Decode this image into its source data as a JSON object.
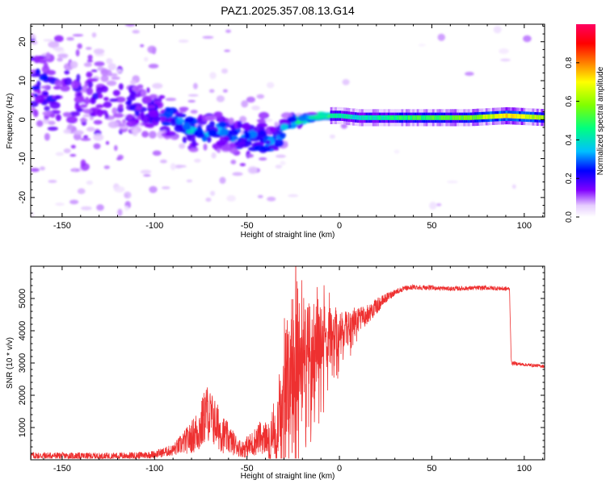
{
  "figure_title": "PAZ1.2025.357.08.13.G14",
  "chart_data": [
    {
      "type": "heatmap",
      "title": "PAZ1.2025.357.08.13.G14",
      "xlabel": "Height of straight line (km)",
      "ylabel": "Frequency (Hz)",
      "xlim": [
        -167,
        111
      ],
      "ylim": [
        -25,
        24.5
      ],
      "xticks": [
        -150,
        -100,
        -50,
        0,
        50,
        100
      ],
      "yticks": [
        -20,
        -10,
        0,
        10,
        20
      ],
      "colorbar": {
        "label": "Normalized spectral amplitude",
        "range": [
          0,
          1
        ],
        "ticks": [
          "0.0",
          "0.2",
          "0.4",
          "0.6",
          "0.8"
        ],
        "colormap": [
          "#ffffff",
          "#8000ff",
          "#0000ff",
          "#00ffff",
          "#00ff00",
          "#ffff00",
          "#ff0000",
          "#ff0060"
        ]
      },
      "ridge": {
        "x": [
          -167,
          -150,
          -130,
          -110,
          -95,
          -80,
          -65,
          -50,
          -42,
          -35,
          -28,
          -20,
          -10,
          0,
          10,
          30,
          50,
          70,
          90,
          111
        ],
        "frequency": [
          9,
          7,
          5,
          4,
          1,
          -3,
          -3,
          -5,
          -5,
          -6,
          -1,
          0,
          1,
          1,
          0.5,
          0.5,
          0.5,
          0.5,
          1,
          0.5
        ],
        "amplitude": [
          0.25,
          0.2,
          0.18,
          0.2,
          0.25,
          0.35,
          0.3,
          0.3,
          0.3,
          0.3,
          0.35,
          0.45,
          0.55,
          0.5,
          0.45,
          0.55,
          0.6,
          0.65,
          0.85,
          0.7
        ],
        "spread_hz": [
          12,
          11,
          10,
          8,
          6,
          5,
          5,
          5,
          5,
          4,
          2,
          1.5,
          1,
          0.8,
          0.7,
          0.7,
          0.7,
          0.7,
          0.7,
          0.7
        ]
      }
    },
    {
      "type": "line",
      "xlabel": "Height of straight line (km)",
      "ylabel": "SNR (10 * v/v)",
      "xlim": [
        -167,
        111
      ],
      "ylim": [
        0,
        6000
      ],
      "xticks": [
        -150,
        -100,
        -50,
        0,
        50,
        100
      ],
      "yticks": [
        1000,
        2000,
        3000,
        4000,
        5000
      ],
      "color": "#ee3030",
      "series": [
        {
          "name": "SNR",
          "x": [
            -167,
            -150,
            -130,
            -110,
            -100,
            -90,
            -80,
            -75,
            -72,
            -68,
            -63,
            -58,
            -53,
            -48,
            -43,
            -38,
            -34,
            -30,
            -27,
            -24,
            -20,
            -15,
            -10,
            -5,
            0,
            5,
            10,
            15,
            20,
            25,
            30,
            35,
            40,
            50,
            60,
            70,
            80,
            90,
            92,
            93,
            100,
            111
          ],
          "y": [
            130,
            120,
            110,
            130,
            170,
            300,
            700,
            1000,
            1500,
            1200,
            800,
            550,
            330,
            450,
            700,
            600,
            800,
            2200,
            3000,
            3400,
            3500,
            3600,
            3700,
            3800,
            3900,
            4100,
            4300,
            4500,
            4750,
            5000,
            5200,
            5300,
            5350,
            5330,
            5300,
            5320,
            5330,
            5300,
            5300,
            3000,
            2950,
            2900
          ],
          "noise": [
            120,
            110,
            110,
            110,
            120,
            180,
            500,
            800,
            900,
            800,
            600,
            400,
            250,
            400,
            500,
            500,
            700,
            1600,
            2000,
            2000,
            1600,
            1400,
            1100,
            900,
            700,
            500,
            400,
            300,
            250,
            150,
            100,
            80,
            80,
            70,
            70,
            70,
            70,
            70,
            70,
            60,
            50,
            50
          ]
        }
      ]
    }
  ]
}
